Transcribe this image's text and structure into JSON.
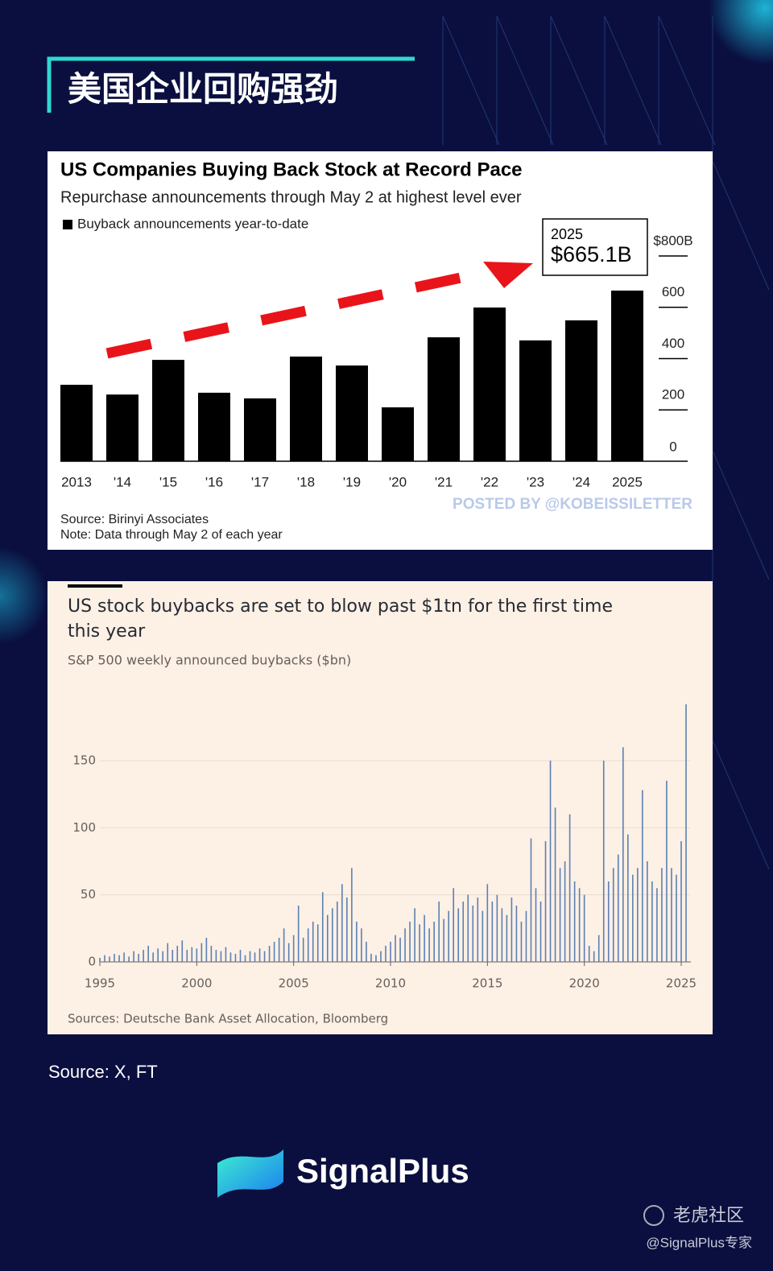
{
  "header": {
    "title": "美国企业回购强劲"
  },
  "chart_data": [
    {
      "type": "bar",
      "title": "US Companies Buying Back Stock at Record Pace",
      "subtitle": "Repurchase announcements through May 2 at highest level ever",
      "categories": [
        "2013",
        "'14",
        "'15",
        "'16",
        "'17",
        "'18",
        "'19",
        "'20",
        "'21",
        "'22",
        "'23",
        "'24",
        "2025"
      ],
      "series": [
        {
          "name": "Buyback announcements year-to-date",
          "color": "#000000",
          "values": [
            298,
            260,
            395,
            267,
            245,
            408,
            373,
            210,
            483,
            599,
            471,
            549,
            665.1
          ],
          "value_labels": [
            null,
            null,
            null,
            null,
            null,
            null,
            null,
            null,
            null,
            null,
            null,
            null,
            "$665.1B"
          ]
        }
      ],
      "ylim": [
        0,
        800
      ],
      "yticks": [
        0,
        200,
        400,
        600,
        {
          "value": 800,
          "label": "$800B"
        }
      ],
      "legend": "top-left",
      "source": "Source: Birinyi Associates",
      "note": "Note: Data through May 2 of each year",
      "watermark": "POSTED BY @KOBEISSILETTER"
    },
    {
      "type": "spike",
      "title": "US stock buybacks are set to blow past $1tn for the first time this year",
      "subtitle": "S&P 500 weekly announced buybacks ($bn)",
      "x": [
        1995,
        1995.25,
        1995.5,
        1995.75,
        1996,
        1996.25,
        1996.5,
        1996.75,
        1997,
        1997.25,
        1997.5,
        1997.75,
        1998,
        1998.25,
        1998.5,
        1998.75,
        1999,
        1999.25,
        1999.5,
        1999.75,
        2000,
        2000.25,
        2000.5,
        2000.75,
        2001,
        2001.25,
        2001.5,
        2001.75,
        2002,
        2002.25,
        2002.5,
        2002.75,
        2003,
        2003.25,
        2003.5,
        2003.75,
        2004,
        2004.25,
        2004.5,
        2004.75,
        2005,
        2005.25,
        2005.5,
        2005.75,
        2006,
        2006.25,
        2006.5,
        2006.75,
        2007,
        2007.25,
        2007.5,
        2007.75,
        2008,
        2008.25,
        2008.5,
        2008.75,
        2009,
        2009.25,
        2009.5,
        2009.75,
        2010,
        2010.25,
        2010.5,
        2010.75,
        2011,
        2011.25,
        2011.5,
        2011.75,
        2012,
        2012.25,
        2012.5,
        2012.75,
        2013,
        2013.25,
        2013.5,
        2013.75,
        2014,
        2014.25,
        2014.5,
        2014.75,
        2015,
        2015.25,
        2015.5,
        2015.75,
        2016,
        2016.25,
        2016.5,
        2016.75,
        2017,
        2017.25,
        2017.5,
        2017.75,
        2018,
        2018.25,
        2018.5,
        2018.75,
        2019,
        2019.25,
        2019.5,
        2019.75,
        2020,
        2020.25,
        2020.5,
        2020.75,
        2021,
        2021.25,
        2021.5,
        2021.75,
        2022,
        2022.25,
        2022.5,
        2022.75,
        2023,
        2023.25,
        2023.5,
        2023.75,
        2024,
        2024.25,
        2024.5,
        2024.75,
        2025,
        2025.25
      ],
      "values": [
        3,
        5,
        4,
        6,
        5,
        7,
        4,
        8,
        6,
        9,
        12,
        7,
        10,
        8,
        14,
        9,
        12,
        16,
        9,
        11,
        10,
        14,
        18,
        12,
        9,
        8,
        11,
        7,
        6,
        9,
        5,
        8,
        7,
        10,
        8,
        12,
        15,
        18,
        25,
        14,
        20,
        42,
        18,
        25,
        30,
        28,
        52,
        35,
        40,
        45,
        58,
        48,
        70,
        30,
        25,
        15,
        6,
        5,
        8,
        12,
        15,
        20,
        18,
        25,
        30,
        40,
        28,
        35,
        25,
        30,
        45,
        32,
        38,
        55,
        40,
        45,
        50,
        42,
        48,
        38,
        58,
        45,
        50,
        40,
        35,
        48,
        42,
        30,
        38,
        92,
        55,
        45,
        90,
        150,
        115,
        70,
        75,
        110,
        60,
        55,
        50,
        12,
        8,
        20,
        150,
        60,
        70,
        80,
        160,
        95,
        65,
        70,
        128,
        75,
        60,
        55,
        70,
        135,
        70,
        65,
        90,
        192
      ],
      "color": "#5b80b2",
      "xlim": [
        1995,
        2025.5
      ],
      "xticks": [
        1995,
        2000,
        2005,
        2010,
        2015,
        2020,
        2025
      ],
      "ylim": [
        0,
        195
      ],
      "yticks": [
        0,
        50,
        100,
        150
      ],
      "grid": true,
      "source": "Sources: Deutsche Bank Asset Allocation, Bloomberg"
    }
  ],
  "footer": {
    "source": "Source: X, FT",
    "brand": "SignalPlus",
    "watermark": "老虎社区",
    "handle": "@SignalPlus专家"
  }
}
